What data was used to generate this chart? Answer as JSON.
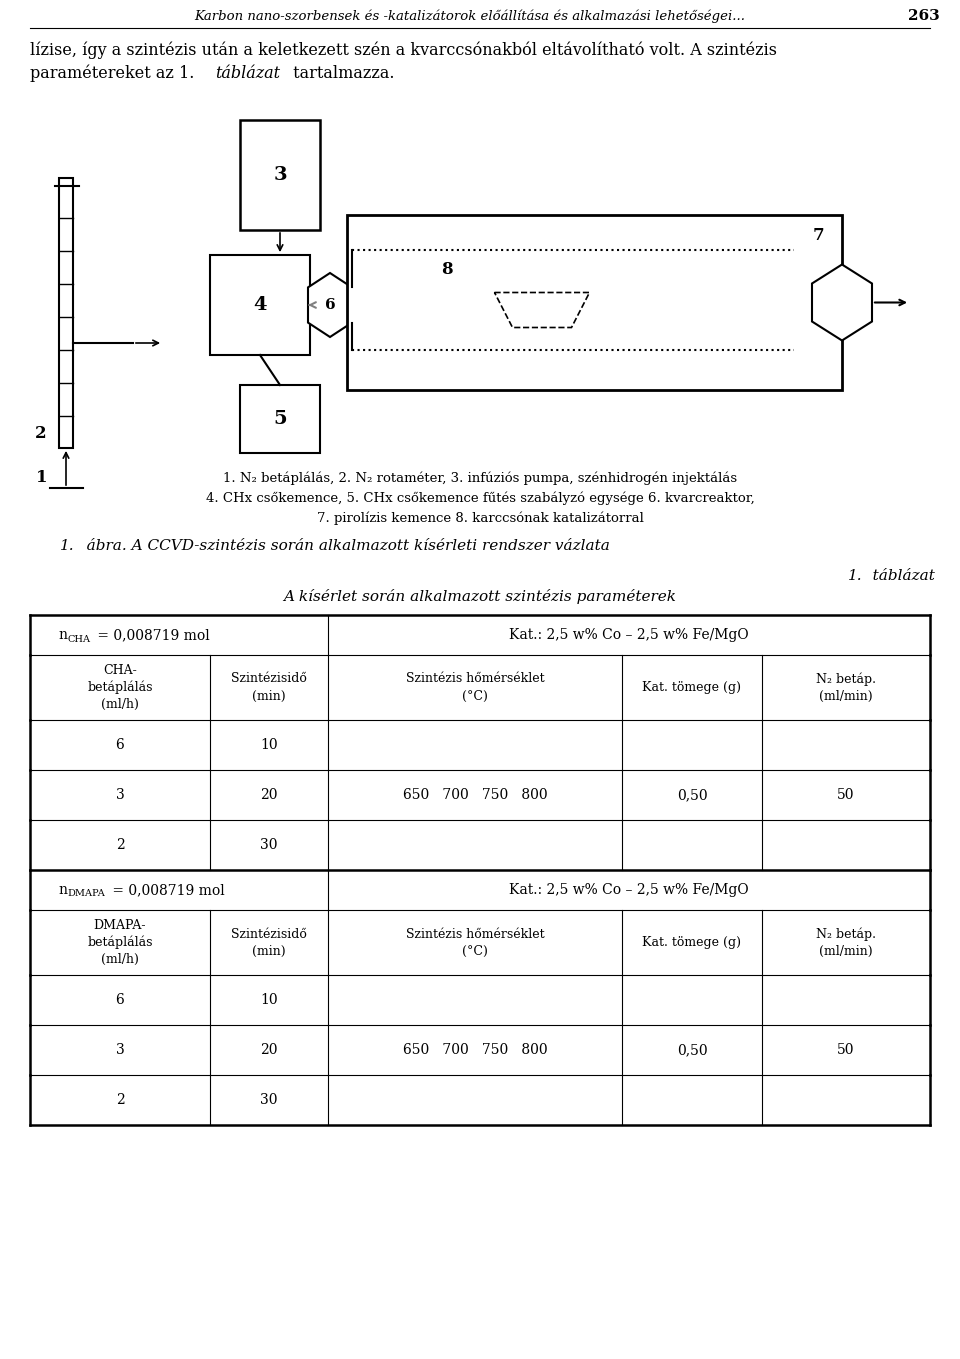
{
  "bg": "#ffffff",
  "header_text": "Karbon nano-szorbensek és -katalizátorok előállítása és alkalmazási lehetőségei...",
  "page_num": "263",
  "body_text_line1": "lízise, így a szintézis után a keletkezett szén a kvarccsónakból eltávolítható volt. A szintézis",
  "body_text_line2a": "paramétereket az 1. ",
  "body_text_line2b": "táblázat",
  "body_text_line2c": " tartalmazza.",
  "caption": [
    "1. N₂ betáplálás, 2. N₂ rotaméter, 3. infúziós pumpa, szénhidrogén injektálás",
    "4. CHx csőkemence, 5. CHx csőkemence fűtés szabályzó egysége 6. kvarcreaktor,",
    "7. pirolízis kemence 8. karccsónak katalizátorral"
  ],
  "fig_caption_num": "1.",
  "fig_caption_rest": "   ábra. A CCVD-szintézis során alkalmazott kísérleti rendszer vázlata",
  "tbl_label_num": "1.",
  "tbl_label_rest": "   táblázat",
  "tbl_subtitle": "A kísérlet során alkalmazott szintézis paraméterek",
  "tbl_sec1_right": "Kat.: 2,5 w% Co – 2,5 w% Fe/MgO",
  "tbl_sec2_right": "Kat.: 2,5 w% Co – 2,5 w% Fe/MgO",
  "col_headers1": [
    "CHA-\nbetáplálás\n(ml/h)",
    "Szintézisidő\n(min)",
    "Szintézis hőmérséklet\n(°C)",
    "Kat. tömege (g)",
    "N₂ betáp.\n(ml/min)"
  ],
  "col_headers2": [
    "DMAPA-\nbetáplálás\n(ml/h)",
    "Szintézisidő\n(min)",
    "Szintézis hőmérséklet\n(°C)",
    "Kat. tömege (g)",
    "N₂ betáp.\n(ml/min)"
  ],
  "data_col1": [
    "6",
    "3",
    "2"
  ],
  "data_col2": [
    "10",
    "20",
    "30"
  ],
  "data_temps": "650   700   750   800",
  "data_kat": "0,50",
  "data_n2": "50",
  "labels": {
    "n1": "1",
    "n2": "2",
    "n3": "3",
    "n4": "4",
    "n5": "5",
    "n6": "6",
    "n7": "7",
    "n8": "8"
  }
}
